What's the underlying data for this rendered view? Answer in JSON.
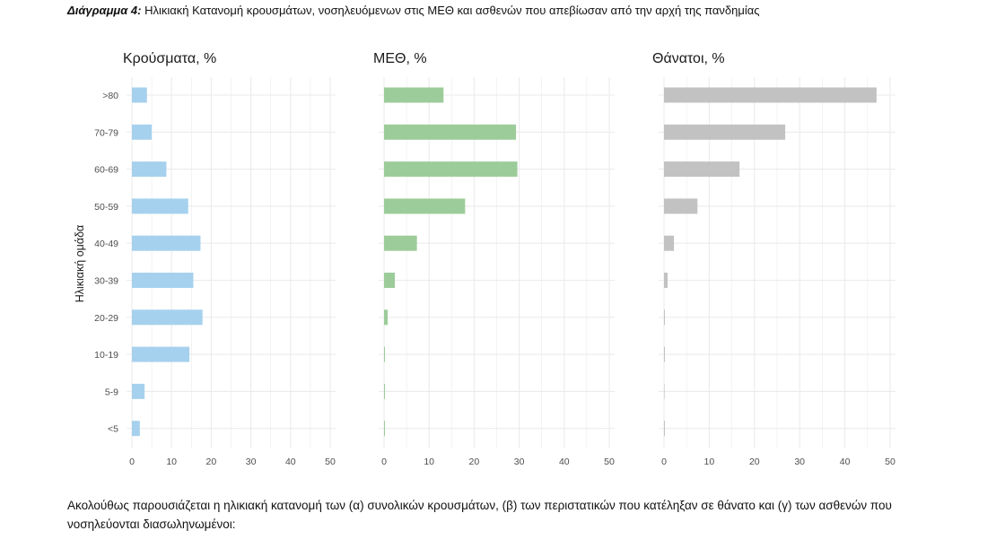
{
  "caption": {
    "label": "Διάγραμμα 4:",
    "text": "Ηλικιακή Κατανομή κρουσμάτων, νοσηλευόμενων στις ΜΕΘ και ασθενών που απεβίωσαν από την αρχή της πανδημίας"
  },
  "footer": {
    "text": "Ακολούθως παρουσιάζεται η ηλικιακή κατανομή των (α) συνολικών κρουσμάτων, (β) των περιστατικών που κατέληξαν σε θάνατο και (γ) των ασθενών που νοσηλεύονται διασωληνωμένοι:"
  },
  "colors": {
    "cases": "#a6d1ee",
    "icu": "#9ccc9a",
    "deaths": "#c2c2c2",
    "grid": "#ebebeb"
  },
  "chart_data": [
    {
      "type": "bar",
      "orientation": "horizontal",
      "title": "Κρούσματα, %",
      "ylabel": "Ηλικιακή ομάδα",
      "categories": [
        "<5",
        "5-9",
        "10-19",
        "20-29",
        "30-39",
        "40-49",
        "50-59",
        "60-69",
        "70-79",
        ">80"
      ],
      "values": [
        2,
        3.2,
        14.5,
        17.8,
        15.5,
        17.3,
        14.2,
        8.7,
        5,
        3.8
      ],
      "xlim": [
        0,
        50
      ],
      "xticks": [
        0,
        10,
        20,
        30,
        40,
        50
      ],
      "grid": true
    },
    {
      "type": "bar",
      "orientation": "horizontal",
      "title": "ΜΕΘ, %",
      "categories": [
        "<5",
        "5-9",
        "10-19",
        "20-29",
        "30-39",
        "40-49",
        "50-59",
        "60-69",
        "70-79",
        ">80"
      ],
      "values": [
        0.1,
        0.1,
        0.2,
        0.8,
        2.4,
        7.3,
        18,
        29.6,
        29.3,
        13.2
      ],
      "xlim": [
        0,
        50
      ],
      "xticks": [
        0,
        10,
        20,
        30,
        40,
        50
      ],
      "grid": true
    },
    {
      "type": "bar",
      "orientation": "horizontal",
      "title": "Θάνατοι, %",
      "categories": [
        "<5",
        "5-9",
        "10-19",
        "20-29",
        "30-39",
        "40-49",
        "50-59",
        "60-69",
        "70-79",
        ">80"
      ],
      "values": [
        0.1,
        0,
        0.1,
        0.2,
        0.8,
        2.2,
        7.4,
        16.7,
        26.8,
        47
      ],
      "xlim": [
        0,
        50
      ],
      "xticks": [
        0,
        10,
        20,
        30,
        40,
        50
      ],
      "grid": true
    }
  ]
}
